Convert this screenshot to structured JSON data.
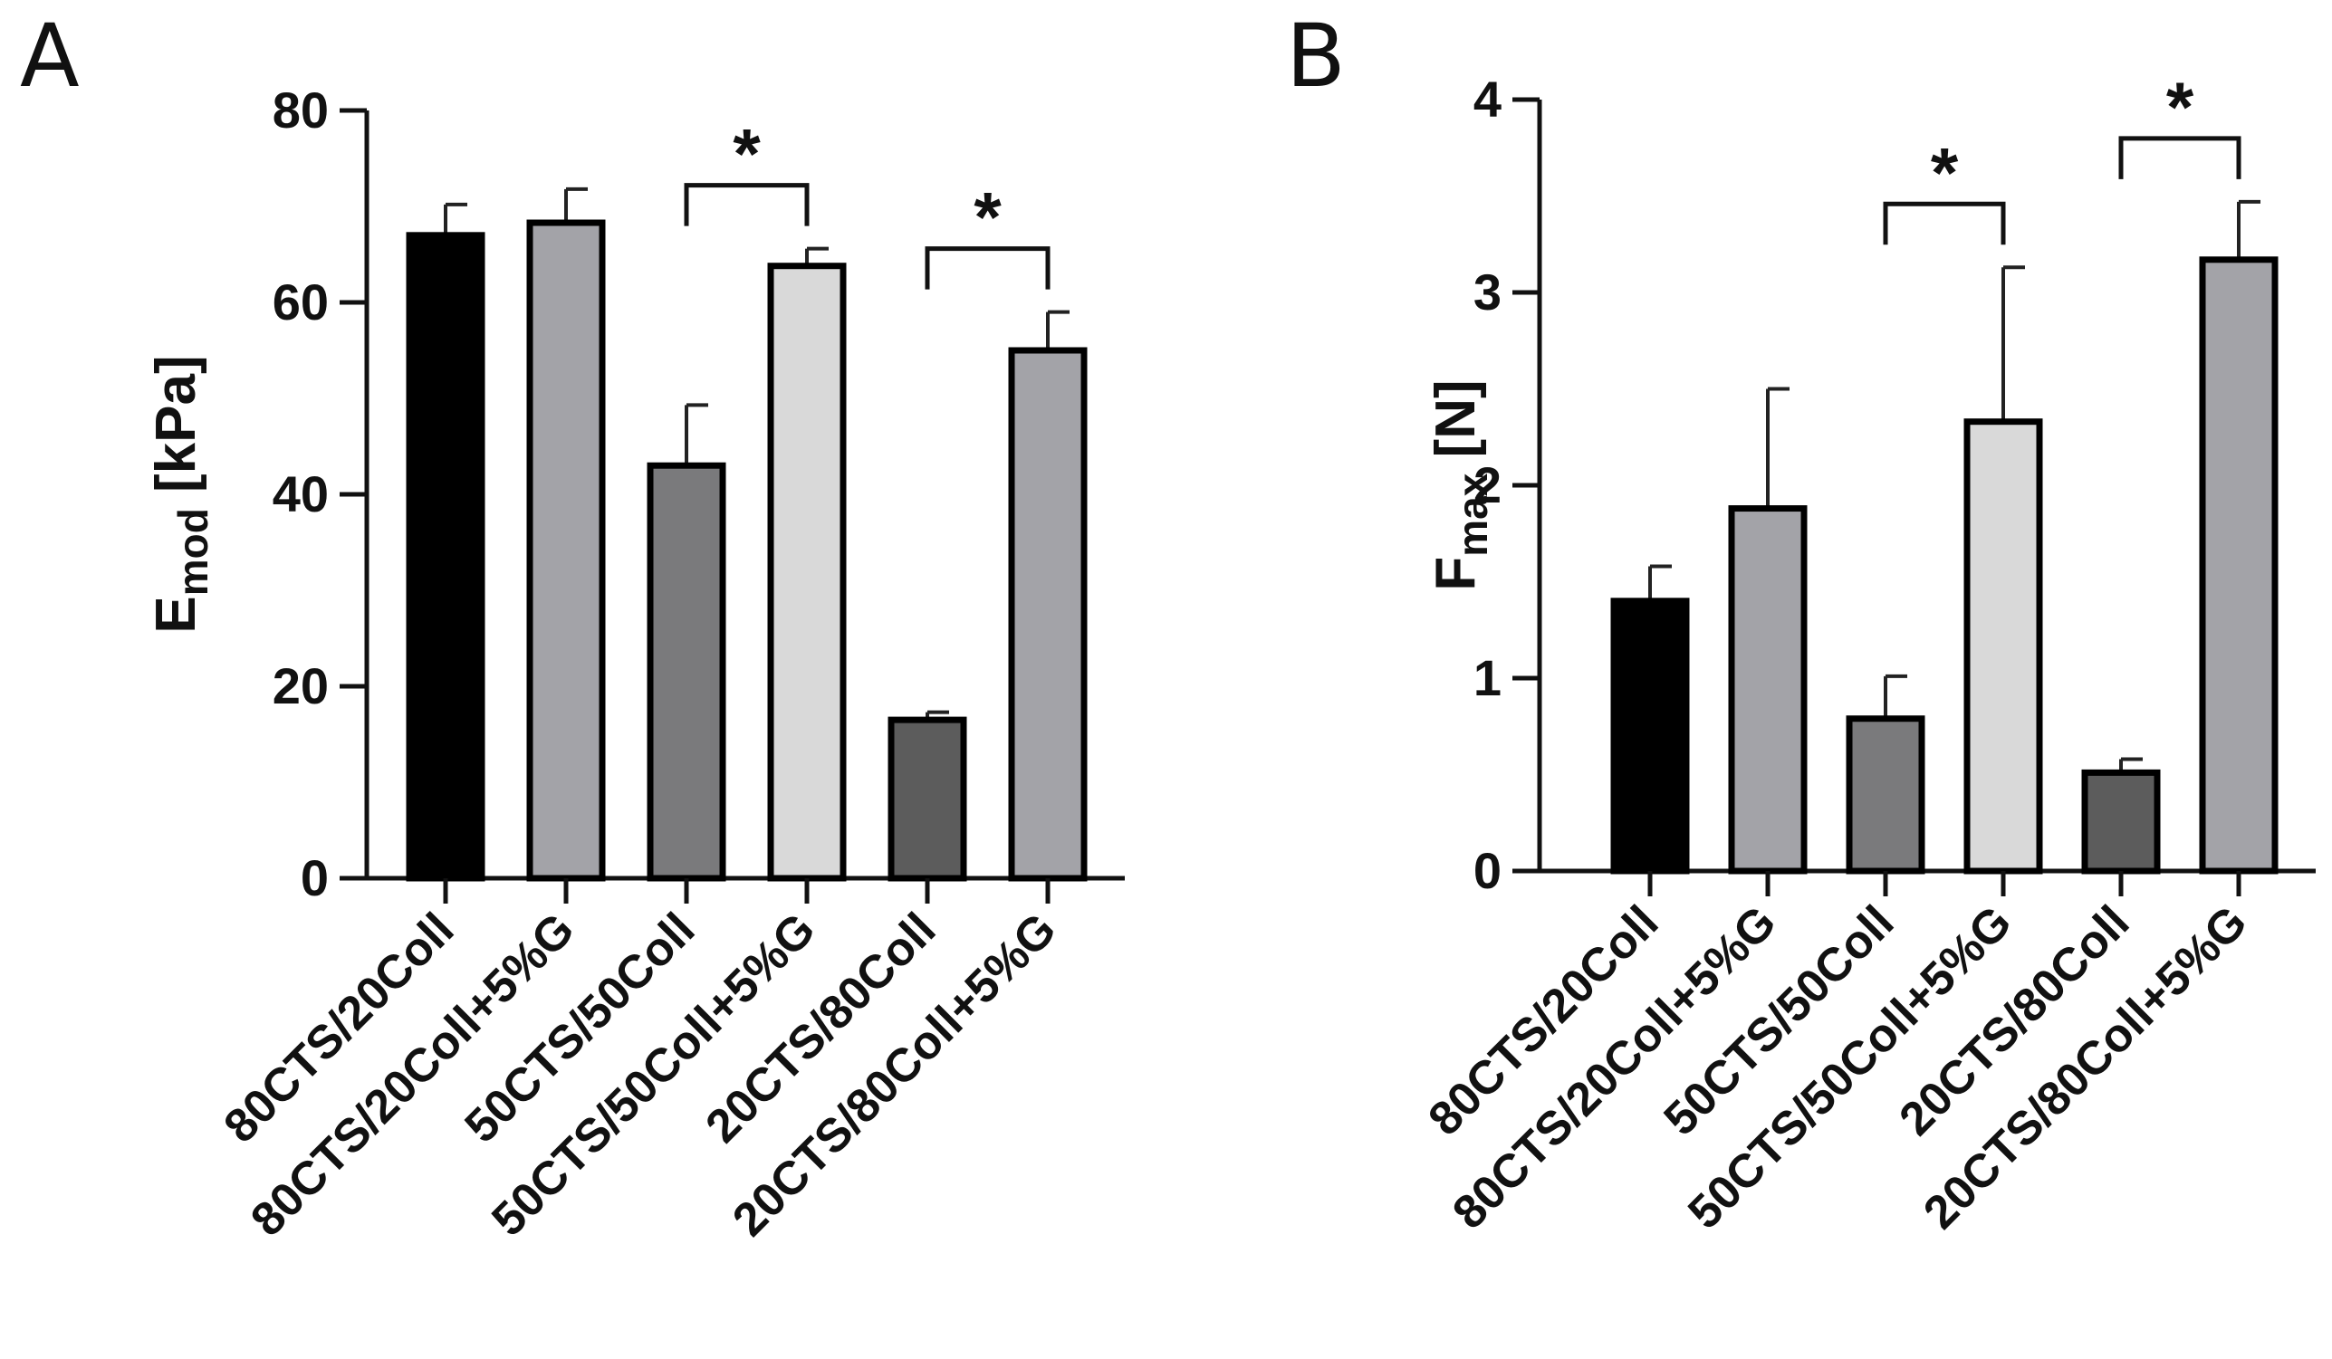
{
  "chart_data": [
    {
      "panel": "A",
      "type": "bar",
      "ylabel": "E",
      "ylabel_sub": "mod",
      "ylabel_unit": "[kPa]",
      "ylim": [
        0,
        80
      ],
      "yticks": [
        0,
        20,
        40,
        60,
        80
      ],
      "categories": [
        "80CTS/20Coll",
        "80CTS/20Coll+5%G",
        "50CTS/50Coll",
        "50CTS/50Coll+5%G",
        "20CTS/80Coll",
        "20CTS/80Coll+5%G"
      ],
      "values": [
        67,
        68.3,
        43,
        63.8,
        16.5,
        55
      ],
      "errors": [
        3.2,
        3.5,
        6.3,
        1.8,
        0.8,
        4
      ],
      "bar_colors": [
        "#000000",
        "#a3a3a8",
        "#7a7a7c",
        "#d9d9d9",
        "#5c5c5c",
        "#a3a3a8"
      ],
      "significance": [
        {
          "from": 2,
          "to": 3,
          "label": "*"
        },
        {
          "from": 4,
          "to": 5,
          "label": "*"
        }
      ]
    },
    {
      "panel": "B",
      "type": "bar",
      "ylabel": "F",
      "ylabel_sub": "max",
      "ylabel_unit": "[N]",
      "ylim": [
        0,
        4
      ],
      "yticks": [
        0,
        1,
        2,
        3,
        4
      ],
      "categories": [
        "80CTS/20Coll",
        "80CTS/20Coll+5%G",
        "50CTS/50Coll",
        "50CTS/50Coll+5%G",
        "20CTS/80Coll",
        "20CTS/80Coll+5%G"
      ],
      "values": [
        1.4,
        1.88,
        0.79,
        2.33,
        0.51,
        3.17
      ],
      "errors": [
        0.18,
        0.62,
        0.22,
        0.8,
        0.07,
        0.3
      ],
      "bar_colors": [
        "#000000",
        "#a3a3a8",
        "#7a7a7c",
        "#d9d9d9",
        "#5c5c5c",
        "#a3a3a8"
      ],
      "significance": [
        {
          "from": 2,
          "to": 3,
          "label": "*"
        },
        {
          "from": 4,
          "to": 5,
          "label": "*"
        }
      ]
    }
  ]
}
